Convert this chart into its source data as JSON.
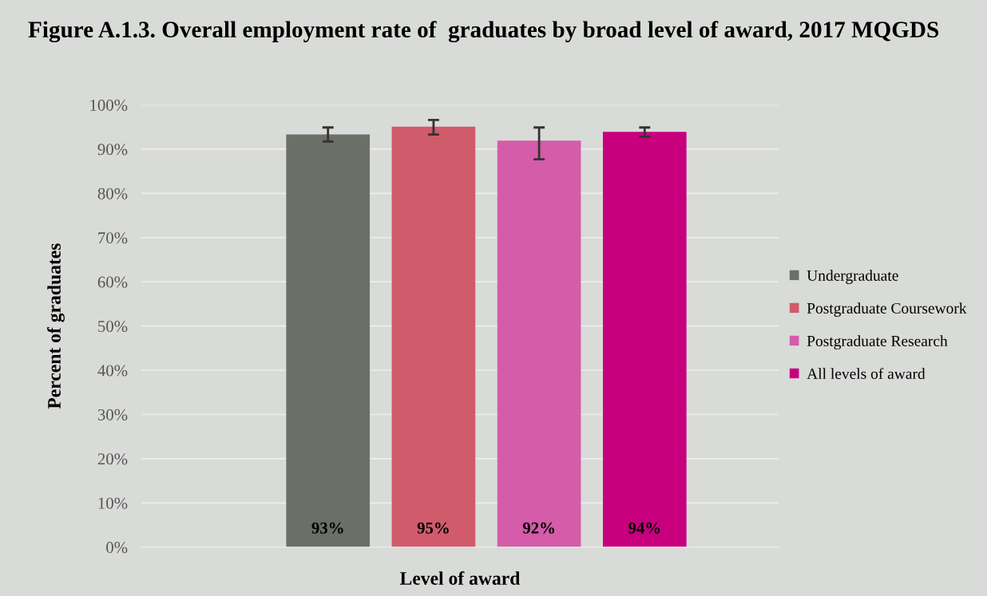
{
  "chart_data": {
    "type": "bar",
    "title": "Figure A.1.3. Overall employment rate of  graduates by broad level of award, 2017 MQGDS",
    "xlabel": "Level of award",
    "ylabel": "Percent of graduates",
    "categories": [
      null
    ],
    "series": [
      {
        "name": "Undergraduate",
        "color": "#6b6f68",
        "values": [
          93.3
        ],
        "errors": [
          [
            91.7,
            94.9
          ]
        ],
        "value_labels": [
          "93%"
        ]
      },
      {
        "name": "Postgraduate Coursework",
        "color": "#d05b6b",
        "values": [
          95.1
        ],
        "errors": [
          [
            93.3,
            96.6
          ]
        ],
        "value_labels": [
          "95%"
        ]
      },
      {
        "name": "Postgraduate Research",
        "color": "#d45ca8",
        "values": [
          91.9
        ],
        "errors": [
          [
            87.7,
            94.9
          ]
        ],
        "value_labels": [
          "92%"
        ]
      },
      {
        "name": "All levels of award",
        "color": "#c8007d",
        "values": [
          93.9
        ],
        "errors": [
          [
            92.8,
            94.9
          ]
        ],
        "value_labels": [
          "94%"
        ]
      }
    ],
    "ylim": [
      0,
      100
    ],
    "yticks": [
      {
        "value": 0,
        "label": "0%"
      },
      {
        "value": 10,
        "label": "10%"
      },
      {
        "value": 20,
        "label": "20%"
      },
      {
        "value": 30,
        "label": "30%"
      },
      {
        "value": 40,
        "label": "40%"
      },
      {
        "value": 50,
        "label": "50%"
      },
      {
        "value": 60,
        "label": "60%"
      },
      {
        "value": 70,
        "label": "70%"
      },
      {
        "value": 80,
        "label": "80%"
      },
      {
        "value": 90,
        "label": "90%"
      },
      {
        "value": 100,
        "label": "100%"
      }
    ],
    "grid": "y",
    "legend": "right"
  }
}
